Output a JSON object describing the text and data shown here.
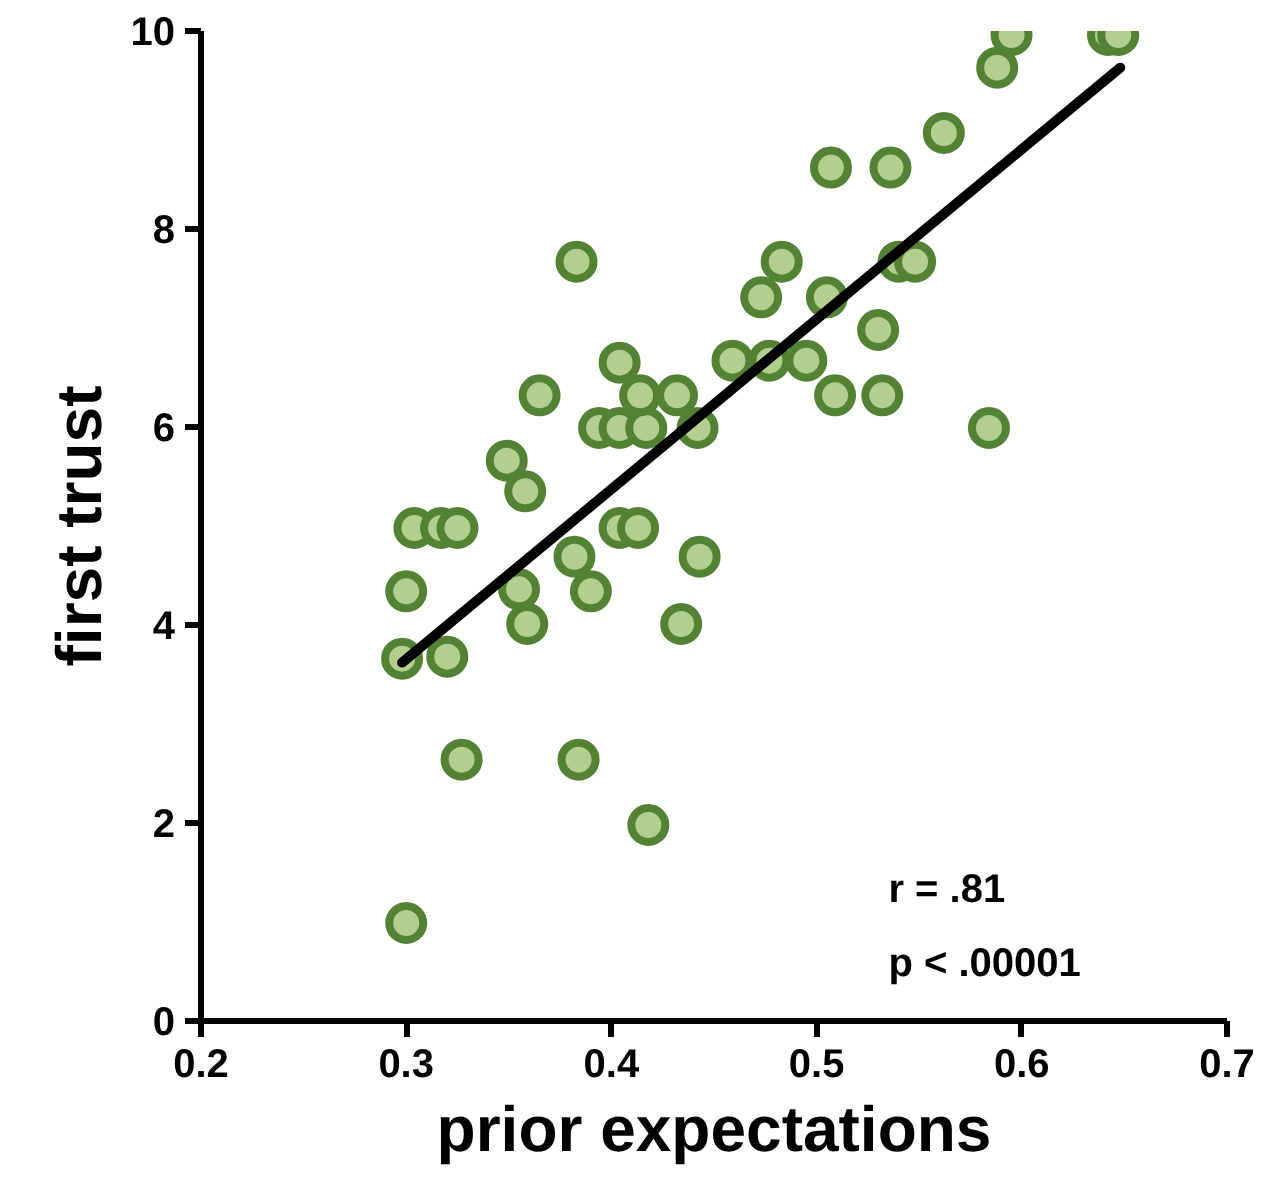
{
  "chart_data": {
    "type": "scatter",
    "xlabel": "prior expectations",
    "ylabel": "first trust",
    "xlim": [
      0.2,
      0.7
    ],
    "xticks": [
      0.2,
      0.3,
      0.4,
      0.5,
      0.6,
      0.7
    ],
    "ylim": [
      0,
      10
    ],
    "yticks": [
      0,
      2,
      4,
      6,
      8,
      10
    ],
    "grid": false,
    "series": [
      {
        "marker": "circle",
        "color": "#548235",
        "x": [
          0.298,
          0.3,
          0.304,
          0.317,
          0.325,
          0.32,
          0.3,
          0.327,
          0.349,
          0.358,
          0.355,
          0.359,
          0.365,
          0.383,
          0.382,
          0.39,
          0.384,
          0.404,
          0.413,
          0.394,
          0.404,
          0.417,
          0.404,
          0.414,
          0.432,
          0.442,
          0.443,
          0.434,
          0.418,
          0.459,
          0.473,
          0.483,
          0.477,
          0.495,
          0.505,
          0.509,
          0.53,
          0.532,
          0.507,
          0.536,
          0.54,
          0.548,
          0.562,
          0.588,
          0.595,
          0.642,
          0.647,
          0.584
        ],
        "values": [
          3.66,
          4.34,
          4.98,
          4.98,
          4.98,
          3.68,
          0.99,
          2.64,
          5.66,
          5.35,
          4.36,
          4.01,
          6.32,
          7.67,
          4.69,
          4.34,
          2.64,
          4.98,
          4.98,
          5.99,
          5.99,
          5.99,
          6.65,
          6.32,
          6.32,
          5.99,
          4.69,
          4.01,
          1.98,
          6.67,
          7.31,
          7.67,
          6.67,
          6.67,
          7.31,
          6.32,
          6.98,
          6.32,
          8.62,
          8.62,
          7.67,
          7.67,
          8.97,
          9.63,
          9.96,
          9.96,
          9.96,
          5.99
        ]
      },
      {
        "type": "line",
        "marker": "none",
        "color": "#000000",
        "x": [
          0.298,
          0.648
        ],
        "values": [
          3.62,
          9.63
        ]
      }
    ],
    "annotations": [
      "r = .81",
      "p < .00001"
    ]
  }
}
